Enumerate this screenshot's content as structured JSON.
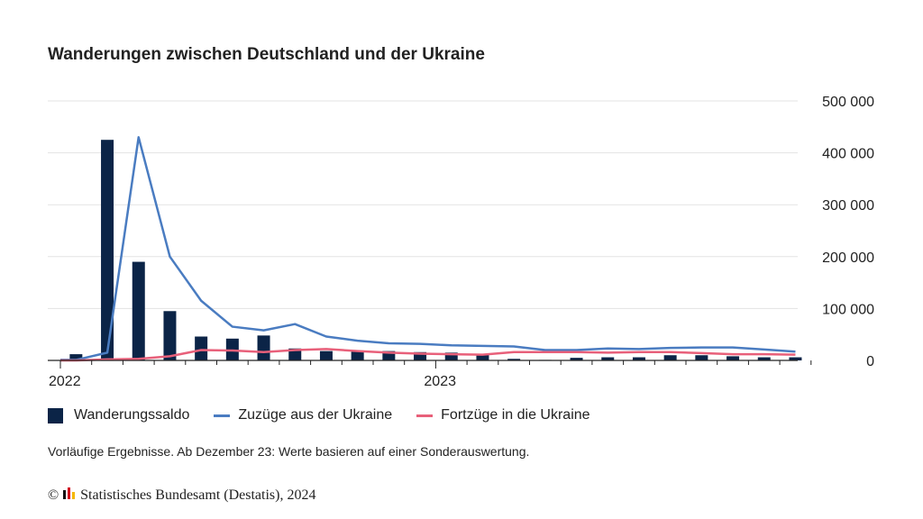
{
  "chart_data": {
    "type": "bar",
    "title": "Wanderungen zwischen Deutschland und der Ukraine",
    "ylim": [
      0,
      500000
    ],
    "y_ticks": [
      "500 000",
      "400 000",
      "300 000",
      "200 000",
      "100 000",
      "0"
    ],
    "y_tick_values": [
      500000,
      400000,
      300000,
      200000,
      100000,
      0
    ],
    "x_tick_labels": [
      {
        "label": "2022",
        "index": 0
      },
      {
        "label": "2023",
        "index": 12
      }
    ],
    "categories": [
      "2022-01",
      "2022-02",
      "2022-03",
      "2022-04",
      "2022-05",
      "2022-06",
      "2022-07",
      "2022-08",
      "2022-09",
      "2022-10",
      "2022-11",
      "2022-12",
      "2023-01",
      "2023-02",
      "2023-03",
      "2023-04",
      "2023-05",
      "2023-06",
      "2023-07",
      "2023-08",
      "2023-09",
      "2023-10",
      "2023-11",
      "2023-12"
    ],
    "series": [
      {
        "name": "Wanderungssaldo",
        "kind": "bar",
        "color": "#0b2447",
        "values": [
          12000,
          425000,
          190000,
          95000,
          46000,
          42000,
          48000,
          23000,
          18000,
          18000,
          18000,
          16000,
          15000,
          13000,
          3000,
          1000,
          5000,
          6000,
          6000,
          10000,
          10000,
          8000,
          6000,
          6000
        ]
      },
      {
        "name": "Zuzüge aus der Ukraine",
        "kind": "line",
        "color": "#4a7cc1",
        "values": [
          1000,
          15000,
          430000,
          200000,
          115000,
          65000,
          58000,
          70000,
          46000,
          38000,
          33000,
          32000,
          29000,
          28000,
          27000,
          20000,
          20000,
          23000,
          22000,
          24000,
          25000,
          25000,
          21000,
          17000
        ]
      },
      {
        "name": "Fortzüge in die Ukraine",
        "kind": "line",
        "color": "#e8607a",
        "values": [
          0,
          2000,
          3000,
          8000,
          20000,
          19000,
          16000,
          20000,
          22000,
          18000,
          15000,
          13000,
          12000,
          11000,
          16000,
          16000,
          16000,
          15000,
          16000,
          16000,
          14000,
          12000,
          12000,
          11000
        ]
      }
    ]
  },
  "note": "Vorläufige Ergebnisse. Ab Dezember 23: Werte basieren auf einer Sonderauswertung.",
  "footer": {
    "copyright": "©",
    "source": "Statistisches Bundesamt (Destatis), 2024"
  }
}
